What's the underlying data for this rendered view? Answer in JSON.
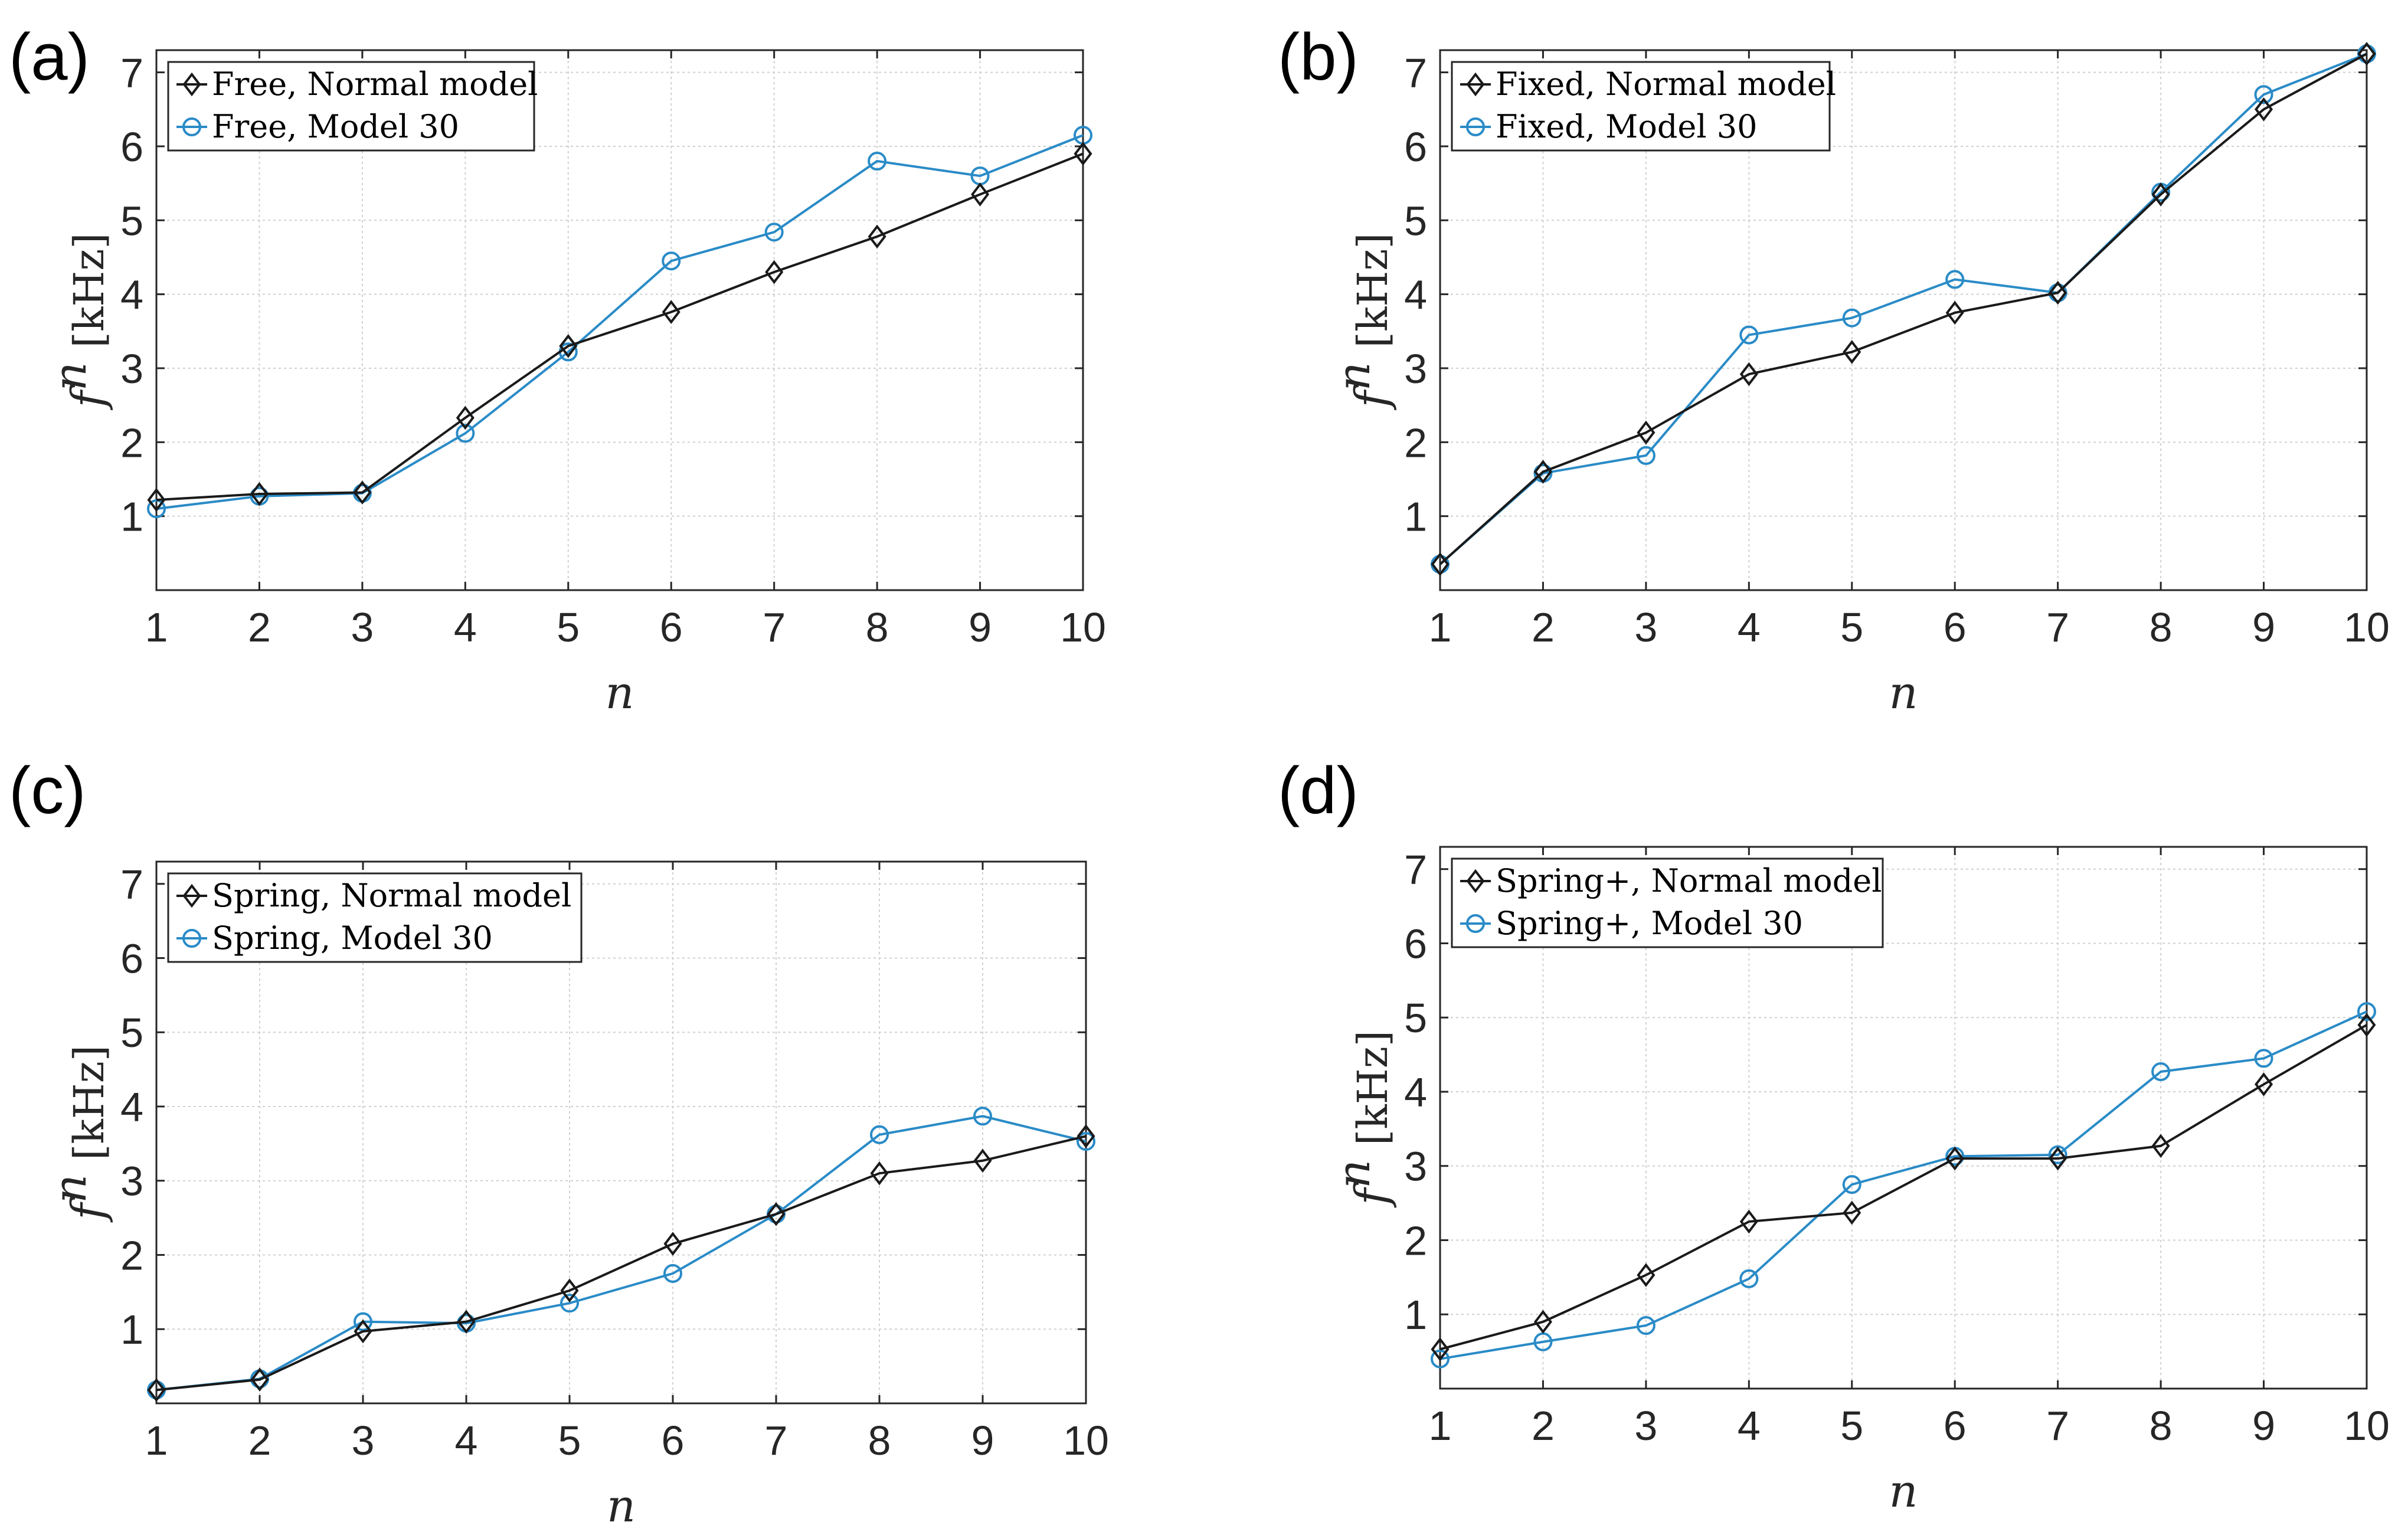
{
  "figure": {
    "panel_labels": [
      "(a)",
      "(b)",
      "(c)",
      "(d)"
    ],
    "colors": {
      "normal": "#1a1a1a",
      "model30": "#2a8bc7",
      "grid": "#d0d0d0",
      "axis": "#262626"
    }
  },
  "chart_data": [
    {
      "type": "line",
      "panel": "(a)",
      "xlabel": "n",
      "ylabel_symbol": "f",
      "ylabel_superscript": "n",
      "ylabel_unit": "[kHz]",
      "x": [
        1,
        2,
        3,
        4,
        5,
        6,
        7,
        8,
        9,
        10
      ],
      "xticks": [
        "1",
        "2",
        "3",
        "4",
        "5",
        "6",
        "7",
        "8",
        "9",
        "10"
      ],
      "yticks": [
        "1",
        "2",
        "3",
        "4",
        "5",
        "6",
        "7"
      ],
      "xlim": [
        1,
        10
      ],
      "ylim": [
        0,
        7.3
      ],
      "grid": true,
      "legend_position": "top-left",
      "series": [
        {
          "name": "Free, Normal model",
          "marker": "diamond",
          "values": [
            1.22,
            1.3,
            1.32,
            2.33,
            3.3,
            3.76,
            4.3,
            4.78,
            5.35,
            5.9
          ]
        },
        {
          "name": "Free, Model 30",
          "marker": "circle",
          "values": [
            1.1,
            1.27,
            1.31,
            2.12,
            3.22,
            4.45,
            4.84,
            5.8,
            5.6,
            6.15
          ]
        }
      ]
    },
    {
      "type": "line",
      "panel": "(b)",
      "xlabel": "n",
      "ylabel_symbol": "f",
      "ylabel_superscript": "n",
      "ylabel_unit": "[kHz]",
      "x": [
        1,
        2,
        3,
        4,
        5,
        6,
        7,
        8,
        9,
        10
      ],
      "xticks": [
        "1",
        "2",
        "3",
        "4",
        "5",
        "6",
        "7",
        "8",
        "9",
        "10"
      ],
      "yticks": [
        "1",
        "2",
        "3",
        "4",
        "5",
        "6",
        "7"
      ],
      "xlim": [
        1,
        10
      ],
      "ylim": [
        0,
        7.3
      ],
      "grid": true,
      "legend_position": "top-left",
      "series": [
        {
          "name": "Fixed, Normal model",
          "marker": "diamond",
          "values": [
            0.35,
            1.6,
            2.13,
            2.92,
            3.22,
            3.75,
            4.02,
            5.35,
            6.5,
            7.25
          ]
        },
        {
          "name": "Fixed, Model 30",
          "marker": "circle",
          "values": [
            0.35,
            1.58,
            1.82,
            3.45,
            3.68,
            4.2,
            4.02,
            5.38,
            6.7,
            7.25
          ]
        }
      ]
    },
    {
      "type": "line",
      "panel": "(c)",
      "xlabel": "n",
      "ylabel_symbol": "f",
      "ylabel_superscript": "n",
      "ylabel_unit": "[kHz]",
      "x": [
        1,
        2,
        3,
        4,
        5,
        6,
        7,
        8,
        9,
        10
      ],
      "xticks": [
        "1",
        "2",
        "3",
        "4",
        "5",
        "6",
        "7",
        "8",
        "9",
        "10"
      ],
      "yticks": [
        "1",
        "2",
        "3",
        "4",
        "5",
        "6",
        "7"
      ],
      "xlim": [
        1,
        10
      ],
      "ylim": [
        0,
        7.3
      ],
      "grid": true,
      "legend_position": "top-left",
      "series": [
        {
          "name": "Spring, Normal model",
          "marker": "diamond",
          "values": [
            0.18,
            0.32,
            0.97,
            1.1,
            1.52,
            2.15,
            2.55,
            3.1,
            3.27,
            3.6
          ]
        },
        {
          "name": "Spring, Model 30",
          "marker": "circle",
          "values": [
            0.18,
            0.33,
            1.1,
            1.08,
            1.35,
            1.75,
            2.55,
            3.62,
            3.87,
            3.53
          ]
        }
      ]
    },
    {
      "type": "line",
      "panel": "(d)",
      "xlabel": "n",
      "ylabel_symbol": "f",
      "ylabel_superscript": "n",
      "ylabel_unit": "[kHz]",
      "x": [
        1,
        2,
        3,
        4,
        5,
        6,
        7,
        8,
        9,
        10
      ],
      "xticks": [
        "1",
        "2",
        "3",
        "4",
        "5",
        "6",
        "7",
        "8",
        "9",
        "10"
      ],
      "yticks": [
        "1",
        "2",
        "3",
        "4",
        "5",
        "6",
        "7"
      ],
      "xlim": [
        1,
        10
      ],
      "ylim": [
        0,
        7.3
      ],
      "grid": true,
      "legend_position": "top-left",
      "series": [
        {
          "name": "Spring+, Normal model",
          "marker": "diamond",
          "values": [
            0.53,
            0.9,
            1.53,
            2.25,
            2.37,
            3.1,
            3.1,
            3.27,
            4.1,
            4.9
          ]
        },
        {
          "name": "Spring+, Model 30",
          "marker": "circle",
          "values": [
            0.4,
            0.63,
            0.85,
            1.48,
            2.75,
            3.13,
            3.15,
            4.27,
            4.45,
            5.08
          ]
        }
      ]
    }
  ]
}
